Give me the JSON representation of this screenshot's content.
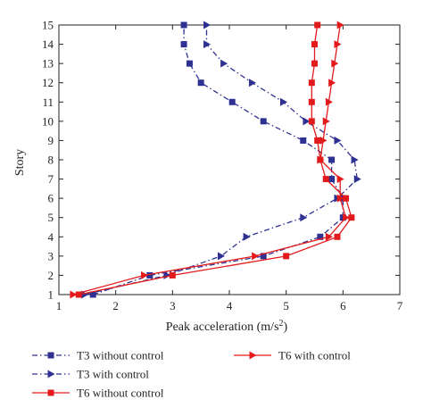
{
  "chart_data": {
    "type": "line",
    "title": "",
    "xlabel": "Peak acceleration (m/s",
    "xlabel_sup": "2",
    "xlabel_close": ")",
    "ylabel": "Story",
    "xlim": [
      1,
      7
    ],
    "ylim": [
      1,
      15
    ],
    "xticks": [
      "1",
      "2",
      "3",
      "4",
      "5",
      "6",
      "7"
    ],
    "yticks": [
      "1",
      "2",
      "3",
      "4",
      "5",
      "6",
      "7",
      "8",
      "9",
      "10",
      "11",
      "12",
      "13",
      "14",
      "15"
    ],
    "grid": false,
    "legend_position": "bottom",
    "series": [
      {
        "name": "T3 without control",
        "color": "#2e3192",
        "line_style": "dash-dot",
        "marker": "square",
        "x": [
          1.6,
          2.6,
          4.6,
          5.6,
          6.0,
          6.0,
          5.8,
          5.8,
          5.3,
          4.6,
          4.05,
          3.5,
          3.3,
          3.2,
          3.2
        ],
        "y": [
          1,
          2,
          3,
          4,
          5,
          6,
          7,
          8,
          9,
          10,
          11,
          12,
          13,
          14,
          15
        ]
      },
      {
        "name": "T3 with control",
        "color": "#2e3192",
        "line_style": "dash-dot",
        "marker": "triangle-right",
        "x": [
          1.45,
          2.9,
          3.85,
          4.3,
          5.3,
          5.9,
          6.25,
          6.2,
          5.9,
          5.35,
          4.95,
          4.4,
          3.9,
          3.6,
          3.6
        ],
        "y": [
          1,
          2,
          3,
          4,
          5,
          6,
          7,
          8,
          9,
          10,
          11,
          12,
          13,
          14,
          15
        ]
      },
      {
        "name": "T6 without control",
        "color": "#e31a1c",
        "line_style": "solid",
        "marker": "square",
        "x": [
          1.35,
          3.0,
          5.0,
          5.9,
          6.15,
          6.05,
          5.7,
          5.6,
          5.55,
          5.45,
          5.45,
          5.45,
          5.5,
          5.5,
          5.55
        ],
        "y": [
          1,
          2,
          3,
          4,
          5,
          6,
          7,
          8,
          9,
          10,
          11,
          12,
          13,
          14,
          15
        ]
      },
      {
        "name": "T6 with control",
        "color": "#e31a1c",
        "line_style": "solid",
        "marker": "triangle-right",
        "x": [
          1.25,
          2.5,
          4.45,
          5.75,
          6.05,
          5.95,
          5.95,
          5.6,
          5.65,
          5.7,
          5.75,
          5.8,
          5.85,
          5.9,
          5.95
        ],
        "y": [
          1,
          2,
          3,
          4,
          5,
          6,
          7,
          8,
          9,
          10,
          11,
          12,
          13,
          14,
          15
        ]
      }
    ]
  }
}
